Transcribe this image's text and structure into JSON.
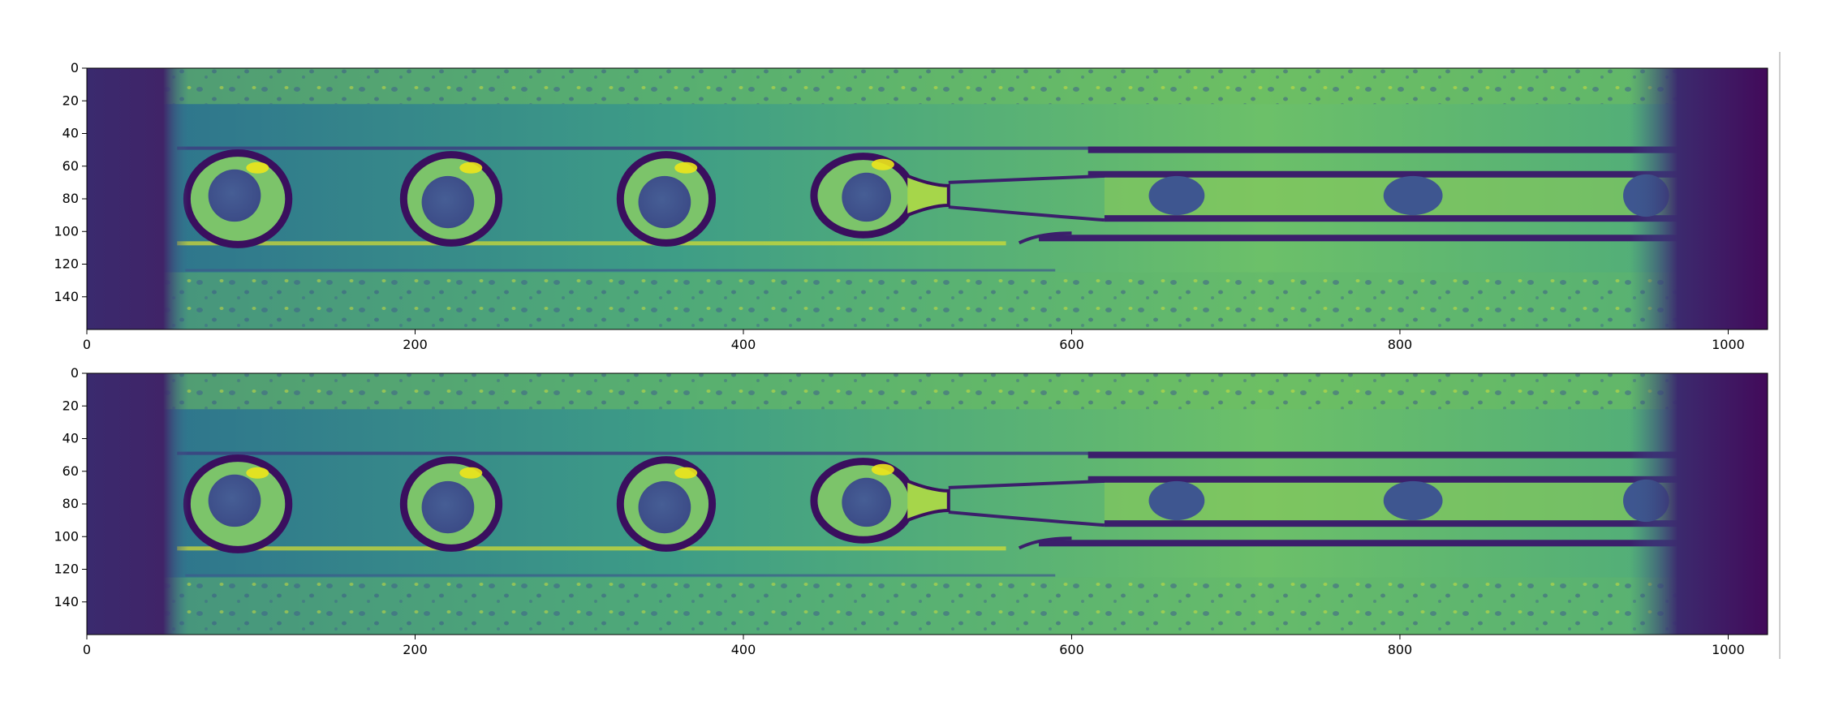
{
  "chart_data": [
    {
      "type": "heatmap",
      "colormap": "viridis",
      "title": "",
      "xlabel": "",
      "ylabel": "",
      "xlim": [
        0,
        1024
      ],
      "ylim": [
        160,
        0
      ],
      "x_ticks": [
        0,
        200,
        400,
        600,
        800,
        1000
      ],
      "y_ticks": [
        0,
        20,
        40,
        60,
        80,
        100,
        120,
        140
      ]
    },
    {
      "type": "heatmap",
      "colormap": "viridis",
      "title": "",
      "xlabel": "",
      "ylabel": "",
      "xlim": [
        0,
        1024
      ],
      "ylim": [
        160,
        0
      ],
      "x_ticks": [
        0,
        200,
        400,
        600,
        800,
        1000
      ],
      "y_ticks": [
        0,
        20,
        40,
        60,
        80,
        100,
        120,
        140
      ]
    }
  ],
  "colors": {
    "dark": "#440154",
    "deep_purple": "#3b2f7a",
    "blue": "#3e4f8b",
    "teal": "#2a8a8a",
    "green": "#4fb07a",
    "light_green": "#8fce5a",
    "yellow": "#e3e418"
  }
}
